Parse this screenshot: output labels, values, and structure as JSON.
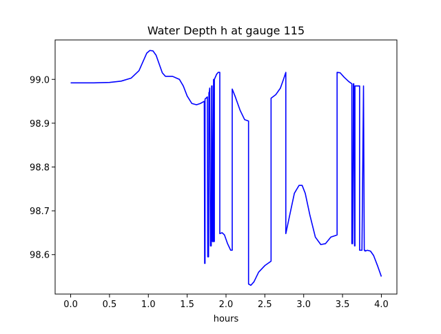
{
  "chart_data": {
    "type": "line",
    "title": "Water Depth h at gauge 115",
    "xlabel": "hours",
    "ylabel": "",
    "xlim": [
      -0.2,
      4.2
    ],
    "ylim": [
      98.51,
      99.09
    ],
    "xticks": [
      0.0,
      0.5,
      1.0,
      1.5,
      2.0,
      2.5,
      3.0,
      3.5,
      4.0
    ],
    "xtick_labels": [
      "0.0",
      "0.5",
      "1.0",
      "1.5",
      "2.0",
      "2.5",
      "3.0",
      "3.5",
      "4.0"
    ],
    "yticks": [
      98.6,
      98.7,
      98.8,
      98.9,
      99.0
    ],
    "ytick_labels": [
      "98.6",
      "98.7",
      "98.8",
      "98.9",
      "99.0"
    ],
    "grid": false,
    "series": [
      {
        "color": "#0000ff",
        "x": [
          0.0,
          0.3,
          0.5,
          0.65,
          0.78,
          0.88,
          0.93,
          0.98,
          1.02,
          1.06,
          1.1,
          1.14,
          1.18,
          1.22,
          1.27,
          1.31,
          1.4,
          1.45,
          1.5,
          1.56,
          1.62,
          1.67,
          1.72,
          1.725,
          1.73,
          1.73,
          1.76,
          1.765,
          1.775,
          1.78,
          1.785,
          1.79,
          1.8,
          1.81,
          1.815,
          1.82,
          1.825,
          1.83,
          1.84,
          1.84,
          1.85,
          1.85,
          1.88,
          1.9,
          1.92,
          1.92,
          1.95,
          1.98,
          2.02,
          2.06,
          2.08,
          2.08,
          2.12,
          2.18,
          2.24,
          2.29,
          2.29,
          2.32,
          2.36,
          2.42,
          2.5,
          2.58,
          2.58,
          2.64,
          2.7,
          2.74,
          2.77,
          2.77,
          2.82,
          2.88,
          2.94,
          2.98,
          3.02,
          3.08,
          3.15,
          3.22,
          3.28,
          3.35,
          3.4,
          3.43,
          3.43,
          3.47,
          3.52,
          3.58,
          3.62,
          3.62,
          3.63,
          3.64,
          3.645,
          3.655,
          3.66,
          3.66,
          3.69,
          3.72,
          3.72,
          3.75,
          3.77,
          3.77,
          3.78,
          3.79,
          3.79,
          3.82,
          3.86,
          3.9,
          3.95,
          4.0
        ],
        "y": [
          98.992,
          98.992,
          98.993,
          98.996,
          99.003,
          99.02,
          99.04,
          99.06,
          99.066,
          99.065,
          99.055,
          99.035,
          99.015,
          99.007,
          99.007,
          99.007,
          99.0,
          98.985,
          98.962,
          98.945,
          98.942,
          98.945,
          98.95,
          98.58,
          98.58,
          98.955,
          98.96,
          98.595,
          98.595,
          98.97,
          98.97,
          98.98,
          98.62,
          98.62,
          98.985,
          98.985,
          98.63,
          98.63,
          99.0,
          98.63,
          98.63,
          99.0,
          99.012,
          99.016,
          99.016,
          98.648,
          98.65,
          98.645,
          98.625,
          98.61,
          98.61,
          98.978,
          98.96,
          98.93,
          98.908,
          98.905,
          98.533,
          98.53,
          98.538,
          98.56,
          98.575,
          98.585,
          98.957,
          98.965,
          98.98,
          99.0,
          99.016,
          98.648,
          98.69,
          98.74,
          98.758,
          98.758,
          98.74,
          98.69,
          98.64,
          98.623,
          98.625,
          98.64,
          98.643,
          98.645,
          99.016,
          99.015,
          99.005,
          98.995,
          98.99,
          98.625,
          98.625,
          98.99,
          98.99,
          98.62,
          98.62,
          98.985,
          98.985,
          98.985,
          98.61,
          98.61,
          98.985,
          98.985,
          98.61,
          98.61,
          98.608,
          98.61,
          98.608,
          98.598,
          98.575,
          98.55
        ]
      }
    ]
  }
}
